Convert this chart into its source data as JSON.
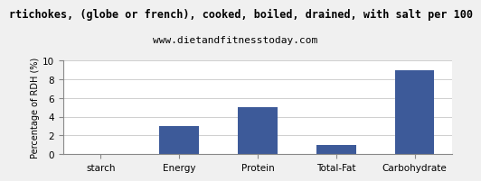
{
  "title": "rtichokes, (globe or french), cooked, boiled, drained, with salt per 100",
  "subtitle": "www.dietandfitnesstoday.com",
  "categories": [
    "starch",
    "Energy",
    "Protein",
    "Total-Fat",
    "Carbohydrate"
  ],
  "values": [
    0,
    3.0,
    5.0,
    1.0,
    9.0
  ],
  "bar_color": "#3d5a99",
  "ylabel": "Percentage of RDH (%)",
  "ylim": [
    0,
    10
  ],
  "yticks": [
    0,
    2,
    4,
    6,
    8,
    10
  ],
  "bg_color": "#f0f0f0",
  "plot_bg_color": "#ffffff",
  "title_fontsize": 8.5,
  "subtitle_fontsize": 8,
  "ylabel_fontsize": 7,
  "tick_fontsize": 7.5
}
